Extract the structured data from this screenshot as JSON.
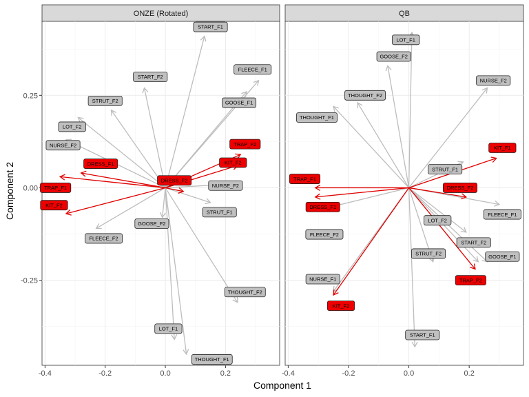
{
  "chart_data": {
    "type": "scatter",
    "subtype": "biplot-arrows",
    "xlabel": "Component 1",
    "ylabel": "Component 2",
    "xlim": [
      -0.41,
      0.38
    ],
    "ylim": [
      -0.48,
      0.45
    ],
    "x_ticks": [
      -0.4,
      -0.2,
      0.0,
      0.2
    ],
    "x_tick_labels": [
      "-0.4",
      "-0.2",
      "0.0",
      "0.2"
    ],
    "y_ticks": [
      -0.25,
      0.0,
      0.25
    ],
    "y_tick_labels": [
      "-0.25",
      "0.00",
      "0.25"
    ],
    "grid": true,
    "colors": {
      "highlight": "#e00000",
      "normal": "#bdbdbd",
      "normal_label_fill": "#c0c0c0",
      "highlight_label_fill": "#ee0000"
    },
    "panels": [
      {
        "title": "ONZE (Rotated)",
        "arrows": [
          {
            "name": "START_F1",
            "x": 0.13,
            "y": 0.41,
            "highlight": false
          },
          {
            "name": "START_F2",
            "x": -0.07,
            "y": 0.27,
            "highlight": false
          },
          {
            "name": "FLEECE_F1",
            "x": 0.31,
            "y": 0.29,
            "highlight": false
          },
          {
            "name": "GOOSE_F1",
            "x": 0.27,
            "y": 0.26,
            "highlight": false
          },
          {
            "name": "STRUT_F2",
            "x": -0.18,
            "y": 0.21,
            "highlight": false
          },
          {
            "name": "LOT_F2",
            "x": -0.29,
            "y": 0.19,
            "highlight": false
          },
          {
            "name": "NURSE_F2",
            "x": -0.33,
            "y": 0.13,
            "highlight": false
          },
          {
            "name": "TRAP_F2",
            "x": 0.25,
            "y": 0.09,
            "highlight": true
          },
          {
            "name": "KIT_F2",
            "x": 0.24,
            "y": 0.06,
            "highlight": true
          },
          {
            "name": "DRESS_F1",
            "x": -0.28,
            "y": 0.04,
            "highlight": true
          },
          {
            "name": "DRESS_F2",
            "x": 0.06,
            "y": -0.01,
            "highlight": true
          },
          {
            "name": "NURSE_F2",
            "x": 0.22,
            "y": 0.01,
            "highlight": false
          },
          {
            "name": "TRAP_F1",
            "x": -0.35,
            "y": 0.03,
            "highlight": true
          },
          {
            "name": "KIT_F2",
            "x": -0.33,
            "y": -0.07,
            "highlight": true
          },
          {
            "name": "STRUT_F1",
            "x": 0.15,
            "y": -0.04,
            "highlight": false
          },
          {
            "name": "GOOSE_F2",
            "x": -0.01,
            "y": -0.08,
            "highlight": false
          },
          {
            "name": "FLEECE_F2",
            "x": -0.23,
            "y": -0.11,
            "highlight": false
          },
          {
            "name": "THOUGHT_F2",
            "x": 0.24,
            "y": -0.31,
            "highlight": false
          },
          {
            "name": "LOT_F1",
            "x": 0.03,
            "y": -0.41,
            "highlight": false
          },
          {
            "name": "THOUGHT_F1",
            "x": 0.07,
            "y": -0.45,
            "highlight": false
          }
        ],
        "labels": [
          {
            "text": "START_F1",
            "x": 0.15,
            "y": 0.435,
            "highlight": false
          },
          {
            "text": "START_F2",
            "x": -0.05,
            "y": 0.3,
            "highlight": false
          },
          {
            "text": "FLEECE_F1",
            "x": 0.29,
            "y": 0.32,
            "highlight": false
          },
          {
            "text": "GOOSE_F1",
            "x": 0.245,
            "y": 0.23,
            "highlight": false
          },
          {
            "text": "STRUT_F2",
            "x": -0.2,
            "y": 0.235,
            "highlight": false
          },
          {
            "text": "LOT_F2",
            "x": -0.31,
            "y": 0.165,
            "highlight": false
          },
          {
            "text": "NURSE_F2",
            "x": -0.34,
            "y": 0.115,
            "highlight": false
          },
          {
            "text": "TRAP_F2",
            "x": 0.265,
            "y": 0.118,
            "highlight": true
          },
          {
            "text": "KIT_F2",
            "x": 0.225,
            "y": 0.068,
            "highlight": true
          },
          {
            "text": "DRESS_F1",
            "x": -0.215,
            "y": 0.065,
            "highlight": true
          },
          {
            "text": "DRESS_F2",
            "x": 0.03,
            "y": 0.02,
            "highlight": true
          },
          {
            "text": "NURSE_F2",
            "x": 0.2,
            "y": 0.006,
            "highlight": false
          },
          {
            "text": "TRAP_F1",
            "x": -0.365,
            "y": 0.0,
            "highlight": true
          },
          {
            "text": "KIT_F2",
            "x": -0.37,
            "y": -0.047,
            "highlight": true
          },
          {
            "text": "STRUT_F1",
            "x": 0.18,
            "y": -0.066,
            "highlight": false
          },
          {
            "text": "GOOSE_F2",
            "x": -0.045,
            "y": -0.097,
            "highlight": false
          },
          {
            "text": "FLEECE_F2",
            "x": -0.205,
            "y": -0.137,
            "highlight": false
          },
          {
            "text": "THOUGHT_F2",
            "x": 0.265,
            "y": -0.282,
            "highlight": false
          },
          {
            "text": "LOT_F1",
            "x": 0.01,
            "y": -0.381,
            "highlight": false
          },
          {
            "text": "THOUGHT_F1",
            "x": 0.155,
            "y": -0.464,
            "highlight": false
          }
        ]
      },
      {
        "title": "QB",
        "arrows": [
          {
            "name": "LOT_F1",
            "x": 0.01,
            "y": 0.42,
            "highlight": false
          },
          {
            "name": "GOOSE_F2",
            "x": -0.07,
            "y": 0.33,
            "highlight": false
          },
          {
            "name": "NURSE_F2",
            "x": 0.26,
            "y": 0.27,
            "highlight": false
          },
          {
            "name": "THOUGHT_F2",
            "x": -0.17,
            "y": 0.23,
            "highlight": false
          },
          {
            "name": "THOUGHT_F1",
            "x": -0.25,
            "y": 0.22,
            "highlight": false
          },
          {
            "name": "KIT_F1",
            "x": 0.29,
            "y": 0.08,
            "highlight": true
          },
          {
            "name": "STRUT_F1",
            "x": 0.18,
            "y": 0.07,
            "highlight": false
          },
          {
            "name": "TRAP_F1",
            "x": -0.31,
            "y": 0.0,
            "highlight": true
          },
          {
            "name": "DRESS_F2",
            "x": 0.19,
            "y": -0.025,
            "highlight": true
          },
          {
            "name": "DRESS_F1",
            "x": -0.31,
            "y": -0.025,
            "highlight": true
          },
          {
            "name": "FLEECE_F1",
            "x": 0.3,
            "y": -0.045,
            "highlight": false
          },
          {
            "name": "FLEECE_F2",
            "x": -0.3,
            "y": -0.06,
            "highlight": false
          },
          {
            "name": "LOT_F2",
            "x": 0.19,
            "y": -0.12,
            "highlight": false
          },
          {
            "name": "START_F2",
            "x": 0.23,
            "y": -0.2,
            "highlight": false
          },
          {
            "name": "GOOSE_F1",
            "x": 0.26,
            "y": -0.2,
            "highlight": false
          },
          {
            "name": "TRAP_F2",
            "x": 0.22,
            "y": -0.22,
            "highlight": true
          },
          {
            "name": "STRUT_F2",
            "x": 0.08,
            "y": -0.2,
            "highlight": false
          },
          {
            "name": "NURSE_F1",
            "x": -0.25,
            "y": -0.28,
            "highlight": false
          },
          {
            "name": "KIT_F2",
            "x": -0.25,
            "y": -0.29,
            "highlight": true
          },
          {
            "name": "START_F1",
            "x": 0.02,
            "y": -0.43,
            "highlight": false
          }
        ],
        "labels": [
          {
            "text": "LOT_F1",
            "x": -0.01,
            "y": 0.4,
            "highlight": false
          },
          {
            "text": "GOOSE_F2",
            "x": -0.05,
            "y": 0.355,
            "highlight": false
          },
          {
            "text": "NURSE_F2",
            "x": 0.28,
            "y": 0.29,
            "highlight": false
          },
          {
            "text": "THOUGHT_F2",
            "x": -0.145,
            "y": 0.25,
            "highlight": false
          },
          {
            "text": "THOUGHT_F1",
            "x": -0.305,
            "y": 0.19,
            "highlight": false
          },
          {
            "text": "KIT_F1",
            "x": 0.31,
            "y": 0.108,
            "highlight": true
          },
          {
            "text": "STRUT_F1",
            "x": 0.12,
            "y": 0.05,
            "highlight": false
          },
          {
            "text": "TRAP_F1",
            "x": -0.345,
            "y": 0.024,
            "highlight": true
          },
          {
            "text": "DRESS_F2",
            "x": 0.17,
            "y": 0.0,
            "highlight": true
          },
          {
            "text": "DRESS_F1",
            "x": -0.285,
            "y": -0.052,
            "highlight": true
          },
          {
            "text": "FLEECE_F1",
            "x": 0.31,
            "y": -0.072,
            "highlight": false
          },
          {
            "text": "FLEECE_F2",
            "x": -0.28,
            "y": -0.126,
            "highlight": false
          },
          {
            "text": "LOT_F2",
            "x": 0.095,
            "y": -0.088,
            "highlight": false
          },
          {
            "text": "START_F2",
            "x": 0.215,
            "y": -0.148,
            "highlight": false
          },
          {
            "text": "GOOSE_F1",
            "x": 0.31,
            "y": -0.186,
            "highlight": false
          },
          {
            "text": "TRAP_F2",
            "x": 0.205,
            "y": -0.25,
            "highlight": true
          },
          {
            "text": "STRUT_F2",
            "x": 0.065,
            "y": -0.178,
            "highlight": false
          },
          {
            "text": "NURSE_F1",
            "x": -0.285,
            "y": -0.247,
            "highlight": false
          },
          {
            "text": "KIT_F2",
            "x": -0.225,
            "y": -0.319,
            "highlight": true
          },
          {
            "text": "START_F1",
            "x": 0.045,
            "y": -0.398,
            "highlight": false
          }
        ]
      }
    ]
  }
}
